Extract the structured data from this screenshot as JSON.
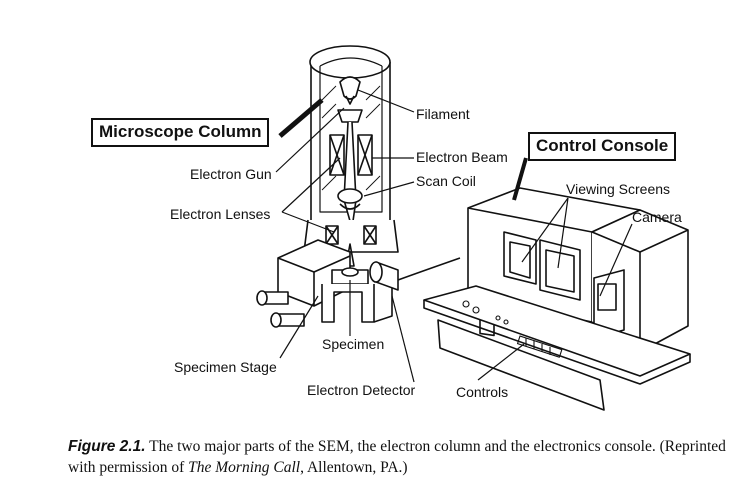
{
  "labels": {
    "microscope_column": "Microscope Column",
    "control_console": "Control Console",
    "filament": "Filament",
    "electron_beam": "Electron Beam",
    "electron_gun": "Electron Gun",
    "scan_coil": "Scan Coil",
    "viewing_screens": "Viewing Screens",
    "camera": "Camera",
    "electron_lenses": "Electron Lenses",
    "specimen": "Specimen",
    "specimen_stage": "Specimen Stage",
    "electron_detector": "Electron Detector",
    "controls": "Controls"
  },
  "caption": {
    "figure_number": "Figure 2.1.",
    "text": " The two major parts of the SEM, the electron column and the electronics console. (Reprinted with permission of ",
    "source_italic": "The Morning Call",
    "source_tail": ", Allentown, PA.)"
  }
}
